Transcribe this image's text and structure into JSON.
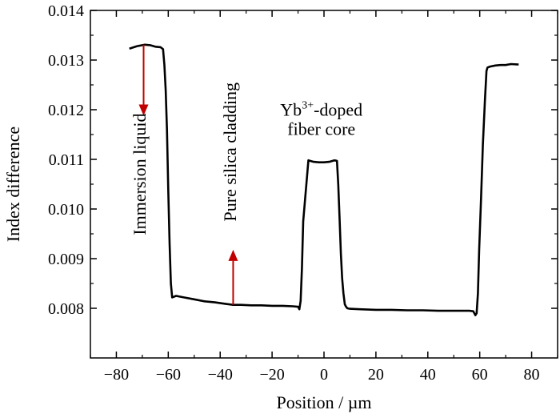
{
  "chart_data": {
    "type": "line",
    "xlabel": "Position / µm",
    "ylabel": "Index difference",
    "xlim": [
      -90,
      90
    ],
    "ylim": [
      0.007,
      0.014
    ],
    "x_ticks": [
      -80,
      -60,
      -40,
      -20,
      0,
      20,
      40,
      60,
      80
    ],
    "x_tick_labels": [
      "−80",
      "−60",
      "−40",
      "−20",
      "0",
      "20",
      "40",
      "60",
      "80"
    ],
    "y_ticks": [
      0.008,
      0.009,
      0.01,
      0.011,
      0.012,
      0.013,
      0.014
    ],
    "y_tick_labels": [
      "0.008",
      "0.009",
      "0.010",
      "0.011",
      "0.012",
      "0.013",
      "0.014"
    ],
    "grid": false,
    "line_color": "#000000",
    "arrow_color": "#c00000",
    "series": [
      {
        "x": [
          -75,
          -72,
          -69,
          -67,
          -65,
          -63,
          -62,
          -61.5,
          -61,
          -60.5,
          -60,
          -59.5,
          -59,
          -58.5,
          -57,
          -54,
          -50,
          -46,
          -42,
          -38,
          -35,
          -32,
          -28,
          -24,
          -20,
          -16,
          -12,
          -10,
          -9.5,
          -9,
          -8.5,
          -8,
          -6,
          -4,
          -2,
          0,
          2,
          4,
          5,
          5.5,
          6,
          6.5,
          7,
          7.5,
          8,
          8.5,
          9,
          10,
          14,
          20,
          26,
          32,
          38,
          44,
          50,
          54,
          56,
          57.5,
          58.3,
          58.8,
          59.3,
          59.8,
          60.5,
          61.2,
          62,
          62.6,
          63,
          64,
          66,
          68,
          70,
          72,
          75
        ],
        "y": [
          0.01323,
          0.01328,
          0.01331,
          0.0133,
          0.01327,
          0.01326,
          0.01322,
          0.0129,
          0.0124,
          0.0116,
          0.0104,
          0.0093,
          0.0085,
          0.00822,
          0.00825,
          0.00822,
          0.00818,
          0.00814,
          0.00812,
          0.00809,
          0.00807,
          0.00807,
          0.00806,
          0.00806,
          0.00805,
          0.00805,
          0.00804,
          0.00803,
          0.00798,
          0.00815,
          0.0088,
          0.00975,
          0.01098,
          0.01095,
          0.01094,
          0.01094,
          0.01095,
          0.01098,
          0.01097,
          0.0105,
          0.0098,
          0.0091,
          0.0086,
          0.0083,
          0.00808,
          0.00803,
          0.008,
          0.00799,
          0.00798,
          0.00797,
          0.00797,
          0.00796,
          0.00796,
          0.00795,
          0.00795,
          0.00795,
          0.00795,
          0.00794,
          0.00786,
          0.0079,
          0.0083,
          0.0092,
          0.0102,
          0.0113,
          0.0122,
          0.01278,
          0.01285,
          0.01287,
          0.01289,
          0.0129,
          0.0129,
          0.01292,
          0.01291
        ]
      }
    ],
    "annotations": {
      "immersion": {
        "text": "Immersion liquid",
        "arrow_x": -69.5,
        "arrow_from": 0.01331,
        "arrow_to": 0.01188
      },
      "cladding": {
        "text": "Pure silica cladding",
        "arrow_x": -35,
        "arrow_from": 0.00807,
        "arrow_to": 0.00918
      },
      "core_line1_base": "Yb",
      "core_line1_sup": "3+",
      "core_line1_rest": "-doped",
      "core_line2": "fiber core"
    }
  }
}
